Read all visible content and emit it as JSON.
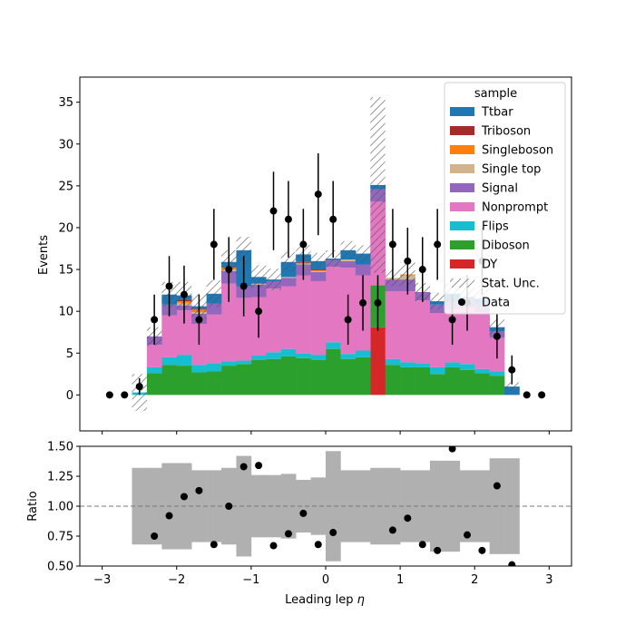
{
  "chart_data": {
    "type": "bar",
    "stacked": true,
    "xlabel": "Leading lep η",
    "ylabel": "Events",
    "ratio_ylabel": "Ratio",
    "xlim": [
      -3.3,
      3.3
    ],
    "ylim": [
      -4.3,
      38
    ],
    "ratio_ylim": [
      0.5,
      1.5
    ],
    "x_ticks": [
      -3,
      -2,
      -1,
      0,
      1,
      2,
      3
    ],
    "y_ticks": [
      0,
      5,
      10,
      15,
      20,
      25,
      30,
      35
    ],
    "ratio_ticks": [
      0.5,
      0.75,
      1.0,
      1.25,
      1.5
    ],
    "ratio_tick_labels": [
      "0.50",
      "0.75",
      "1.00",
      "1.25",
      "1.50"
    ],
    "ratio_reference": 1.0,
    "legend_title": "sample",
    "legend_position": "top-right",
    "bin_edges": [
      -2.6,
      -2.4,
      -2.2,
      -2.0,
      -1.8,
      -1.6,
      -1.4,
      -1.2,
      -1.0,
      -0.8,
      -0.6,
      -0.4,
      -0.2,
      0.0,
      0.2,
      0.4,
      0.6,
      0.8,
      1.0,
      1.2,
      1.4,
      1.6,
      1.8,
      2.0,
      2.2,
      2.4,
      2.6
    ],
    "series": [
      {
        "name": "DY",
        "color": "#d62728",
        "values": [
          0,
          0,
          0,
          0,
          0,
          0,
          0,
          0,
          0,
          0,
          0,
          0,
          0,
          0,
          0,
          0,
          8.1,
          0,
          0,
          0,
          0,
          0,
          0,
          0,
          0,
          0
        ]
      },
      {
        "name": "Diboson",
        "color": "#2ca02c",
        "values": [
          0,
          2.6,
          3.6,
          3.5,
          2.7,
          2.8,
          3.5,
          3.7,
          4.2,
          4.3,
          4.6,
          4.4,
          4.2,
          5.5,
          4.3,
          4.5,
          5.0,
          3.6,
          3.3,
          3.3,
          2.5,
          3.3,
          3.0,
          2.6,
          2.3,
          0
        ]
      },
      {
        "name": "Flips",
        "color": "#17becf",
        "values": [
          0.3,
          0.7,
          0.9,
          1.3,
          0.9,
          1.0,
          0.5,
          0.4,
          0.5,
          0.8,
          0.9,
          0.6,
          0.6,
          0.8,
          0.6,
          0.8,
          0,
          0.7,
          0.6,
          0.5,
          0.8,
          0.6,
          0.7,
          0.5,
          0.5,
          0
        ]
      },
      {
        "name": "Nonprompt",
        "color": "#e377c2",
        "values": [
          0,
          2.7,
          5.0,
          5.3,
          4.9,
          5.8,
          9.3,
          7.5,
          7.0,
          7.6,
          7.5,
          9.3,
          8.8,
          9.0,
          10.3,
          9.0,
          10.0,
          8.1,
          8.5,
          7.5,
          6.5,
          6.3,
          6.8,
          6.8,
          4.0,
          0
        ]
      },
      {
        "name": "Signal",
        "color": "#9467bd",
        "values": [
          0,
          1.0,
          1.3,
          0.6,
          1.2,
          1.3,
          1.5,
          1.4,
          1.5,
          0.9,
          1.0,
          1.3,
          1.1,
          0.8,
          0.8,
          1.3,
          1.5,
          1.4,
          1.4,
          1.0,
          1.0,
          0.9,
          1.0,
          1.0,
          0.8,
          0
        ]
      },
      {
        "name": "Single top",
        "color": "#d2b48c",
        "values": [
          0,
          0,
          0,
          0.3,
          0.2,
          0,
          0.2,
          0,
          0.1,
          0,
          0.1,
          0.1,
          0.1,
          0,
          0.2,
          0,
          0,
          0.2,
          0.5,
          0,
          0,
          0,
          0,
          0,
          0,
          0
        ]
      },
      {
        "name": "Singleboson",
        "color": "#ff7f0e",
        "values": [
          0,
          0,
          0,
          0.2,
          0.3,
          0,
          0.2,
          0,
          0,
          0,
          0,
          0.1,
          0.1,
          0,
          0,
          0,
          0,
          0,
          0.1,
          0,
          0,
          0,
          0,
          0,
          0,
          0
        ]
      },
      {
        "name": "Triboson",
        "color": "#a52a2a",
        "values": [
          0,
          0,
          0,
          0.2,
          0.1,
          0,
          0.1,
          0,
          0,
          0,
          0,
          0.1,
          0.1,
          0,
          0,
          0,
          0,
          0,
          0,
          0,
          0,
          0,
          0,
          0,
          0,
          0
        ]
      },
      {
        "name": "Ttbar",
        "color": "#1f77b4",
        "values": [
          0,
          0,
          1.2,
          0.5,
          0.3,
          1.2,
          0.6,
          4.3,
          0.8,
          0.2,
          1.8,
          0.9,
          1.0,
          0.2,
          1.1,
          1.3,
          0.5,
          0,
          0,
          0,
          0.4,
          1.0,
          0.2,
          0.6,
          0.5,
          1.0
        ]
      }
    ],
    "stat_unc": [
      2.2,
      1.1,
      1.5,
      1.6,
      1.5,
      1.6,
      1.4,
      1.6,
      1.4,
      1.3,
      1.2,
      1.1,
      1.0,
      1.0,
      1.1,
      1.0,
      10.5,
      1.0,
      1.5,
      1.1,
      1.0,
      1.3,
      1.4,
      1.1,
      1.0,
      0.5
    ],
    "data": {
      "name": "Data",
      "x": [
        -2.9,
        -2.7,
        -2.5,
        -2.3,
        -2.1,
        -1.9,
        -1.7,
        -1.5,
        -1.3,
        -1.1,
        -0.9,
        -0.7,
        -0.5,
        -0.3,
        -0.1,
        0.1,
        0.3,
        0.5,
        0.7,
        0.9,
        1.1,
        1.3,
        1.5,
        1.7,
        1.9,
        2.1,
        2.3,
        2.5,
        2.7,
        2.9
      ],
      "y": [
        0,
        0,
        1,
        9,
        13,
        12,
        9,
        18,
        15,
        13,
        10,
        22,
        21,
        18,
        24,
        21,
        9,
        11,
        11,
        18,
        16,
        15,
        18,
        9,
        11,
        16,
        7,
        3,
        0,
        0
      ]
    },
    "ratio": {
      "x": [
        -2.3,
        -2.1,
        -1.9,
        -1.7,
        -1.5,
        -1.3,
        -1.1,
        -0.9,
        -0.7,
        -0.5,
        -0.3,
        -0.1,
        0.1,
        0.9,
        1.1,
        1.3,
        1.5,
        1.7,
        1.9,
        2.1,
        2.3,
        2.5
      ],
      "y": [
        0.75,
        0.92,
        1.08,
        1.13,
        0.68,
        1.0,
        1.33,
        1.34,
        0.67,
        0.77,
        0.94,
        0.68,
        0.78,
        0.8,
        0.9,
        0.68,
        0.63,
        1.48,
        0.76,
        0.63,
        1.17,
        0.51
      ],
      "band": [
        0.32,
        0.32,
        0.36,
        0.36,
        0.3,
        0.3,
        0.32,
        0.42,
        0.26,
        0.26,
        0.27,
        0.22,
        0.24,
        0.46,
        0.3,
        0.3,
        0.32,
        0.32,
        0.3,
        0.3,
        0.38,
        0.38,
        0.3,
        0.3,
        0.4,
        0.4
      ]
    }
  }
}
